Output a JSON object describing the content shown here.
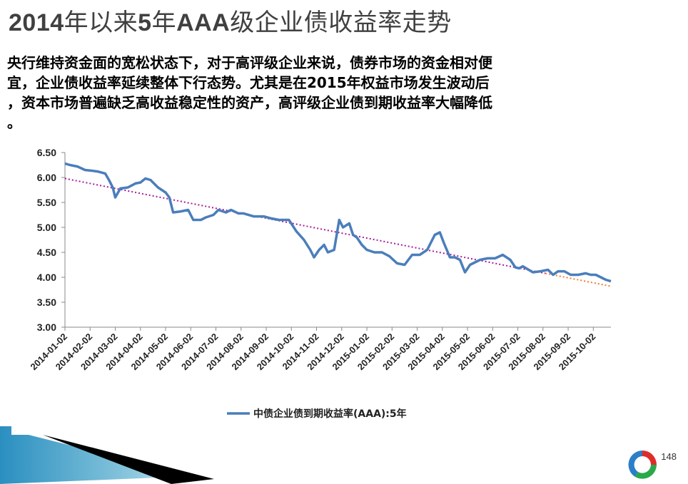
{
  "slide": {
    "title": "2014年以来5年AAA级企业债收益率走势",
    "paragraph": "央行维持资金面的宽松状态下，对于高评级企业来说，债券市场的资金相对便\n  宜，企业债收益率延续整体下行态势。尤其是在2015年权益市场发生波动后\n  ，资本市场普遍缺乏高收益稳定性的资产，高评级企业债到期收益率大幅降低\n  。",
    "page_number": "148"
  },
  "colors": {
    "series": "#4a7ebb",
    "trend_main": "#a61a9c",
    "trend_end": "#f07d2a",
    "title_gray": "#404040"
  },
  "chart_data": {
    "type": "line",
    "title": "",
    "xlabel": "",
    "ylabel": "",
    "ylim": [
      3.0,
      6.5
    ],
    "yticks": [
      "3.00",
      "3.50",
      "4.00",
      "4.50",
      "5.00",
      "5.50",
      "6.00",
      "6.50"
    ],
    "x_categories": [
      "2014-01-02",
      "2014-02-02",
      "2014-03-02",
      "2014-04-02",
      "2014-05-02",
      "2014-06-02",
      "2014-07-02",
      "2014-08-02",
      "2014-09-02",
      "2014-10-02",
      "2014-11-02",
      "2014-12-02",
      "2015-01-02",
      "2015-02-02",
      "2015-03-02",
      "2015-04-02",
      "2015-05-02",
      "2015-06-02",
      "2015-07-02",
      "2015-08-02",
      "2015-09-02",
      "2015-10-02"
    ],
    "legend": {
      "position": "bottom",
      "label": "中债企业债到期收益率(AAA):5年"
    },
    "grid": false,
    "trendline": {
      "type": "linear",
      "style": "dotted",
      "start": 5.98,
      "end": 3.82
    },
    "series": [
      {
        "name": "中债企业债到期收益率(AAA):5年",
        "x": [
          0,
          0.2,
          0.5,
          0.8,
          1.0,
          1.3,
          1.6,
          1.75,
          1.9,
          2.0,
          2.2,
          2.5,
          2.8,
          3.0,
          3.2,
          3.4,
          3.7,
          4.0,
          4.15,
          4.3,
          4.6,
          4.9,
          5.1,
          5.4,
          5.6,
          5.9,
          6.1,
          6.4,
          6.6,
          6.9,
          7.1,
          7.5,
          7.9,
          8.2,
          8.5,
          8.9,
          9.2,
          9.5,
          9.75,
          9.9,
          10.1,
          10.3,
          10.45,
          10.7,
          10.9,
          11.05,
          11.3,
          11.45,
          11.6,
          11.8,
          12.0,
          12.3,
          12.6,
          12.9,
          13.2,
          13.5,
          13.8,
          14.1,
          14.4,
          14.7,
          14.9,
          15.05,
          15.3,
          15.5,
          15.7,
          15.9,
          16.1,
          16.3,
          16.5,
          16.8,
          17.1,
          17.4,
          17.7,
          17.9,
          18.05,
          18.2,
          18.6,
          18.9,
          19.2,
          19.4,
          19.6,
          19.85,
          20.1,
          20.4,
          20.7,
          20.9,
          21.1,
          21.3,
          21.5,
          21.7
        ],
        "values": [
          6.28,
          6.25,
          6.22,
          6.15,
          6.14,
          6.12,
          6.08,
          5.95,
          5.8,
          5.6,
          5.78,
          5.8,
          5.88,
          5.9,
          5.98,
          5.95,
          5.8,
          5.7,
          5.6,
          5.3,
          5.32,
          5.35,
          5.15,
          5.15,
          5.2,
          5.25,
          5.35,
          5.3,
          5.35,
          5.28,
          5.28,
          5.22,
          5.22,
          5.18,
          5.15,
          5.15,
          4.92,
          4.75,
          4.55,
          4.4,
          4.55,
          4.65,
          4.5,
          4.55,
          5.15,
          5.0,
          5.08,
          4.85,
          4.8,
          4.65,
          4.55,
          4.5,
          4.5,
          4.42,
          4.28,
          4.25,
          4.45,
          4.45,
          4.55,
          4.85,
          4.9,
          4.7,
          4.4,
          4.4,
          4.35,
          4.1,
          4.25,
          4.3,
          4.35,
          4.38,
          4.38,
          4.45,
          4.35,
          4.2,
          4.18,
          4.22,
          4.1,
          4.12,
          4.15,
          4.05,
          4.12,
          4.12,
          4.05,
          4.05,
          4.08,
          4.05,
          4.05,
          4.0,
          3.95,
          3.92
        ]
      }
    ]
  }
}
